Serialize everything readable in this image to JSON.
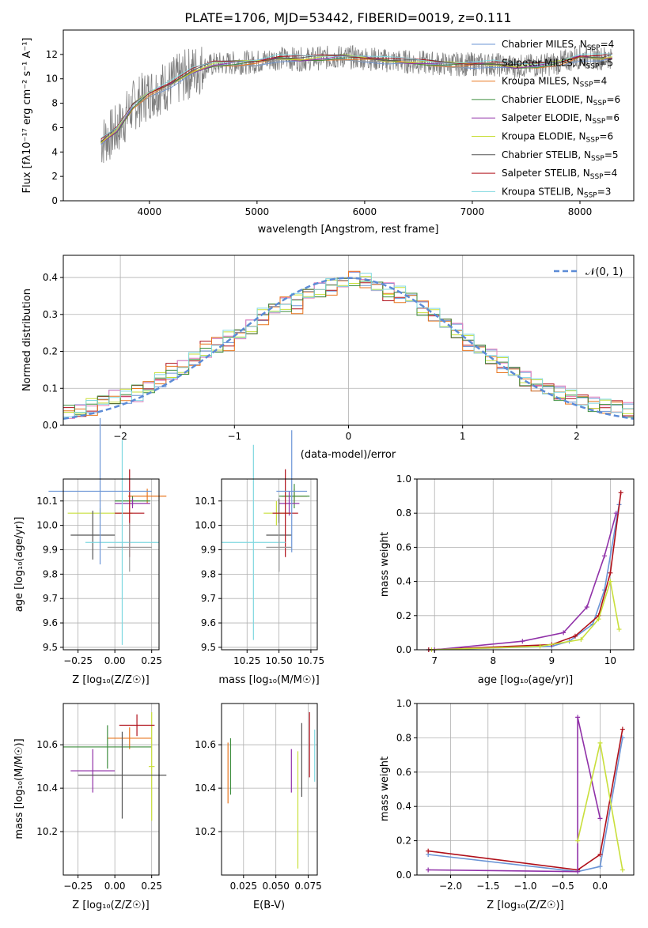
{
  "title": "PLATE=1706, MJD=53442, FIBERID=0019, z=0.111",
  "models": [
    {
      "name": "Chabrier MILES",
      "nssp": "4",
      "color": "#6b95d6"
    },
    {
      "name": "Salpeter MILES",
      "nssp": "5",
      "color": "#9b9b9b"
    },
    {
      "name": "Kroupa MILES",
      "nssp": "4",
      "color": "#e8761f"
    },
    {
      "name": "Chabrier ELODIE",
      "nssp": "6",
      "color": "#3e8e3e"
    },
    {
      "name": "Salpeter ELODIE",
      "nssp": "6",
      "color": "#9031a8"
    },
    {
      "name": "Kroupa ELODIE",
      "nssp": "6",
      "color": "#c9df3b"
    },
    {
      "name": "Chabrier STELIB",
      "nssp": "5",
      "color": "#555555"
    },
    {
      "name": "Salpeter STELIB",
      "nssp": "4",
      "color": "#b0101a"
    },
    {
      "name": "Kroupa STELIB",
      "nssp": "3",
      "color": "#7fd8e0"
    }
  ],
  "panels": {
    "spectrum": {
      "xlabel": "wavelength [Angstrom, rest frame]",
      "ylabel": "Flux [fλ10⁻¹⁷ erg cm⁻² s⁻¹ A⁻¹]",
      "xlim": [
        3200,
        8500
      ],
      "ylim": [
        0,
        14
      ],
      "xticks": [
        4000,
        5000,
        6000,
        7000,
        8000
      ],
      "yticks": [
        0,
        2,
        4,
        6,
        8,
        10,
        12
      ],
      "xticklabels": [
        "4000",
        "5000",
        "6000",
        "7000",
        "8000"
      ],
      "yticklabels": [
        "0",
        "2",
        "4",
        "6",
        "8",
        "10",
        "12"
      ]
    },
    "residuals": {
      "xlabel": "(data-model)/error",
      "ylabel": "Normed distribution",
      "legend": "𝒩(0, 1)",
      "xlim": [
        -2.5,
        2.5
      ],
      "ylim": [
        0,
        0.46
      ],
      "xticks": [
        -2,
        -1,
        0,
        1,
        2
      ],
      "yticks": [
        0,
        0.1,
        0.2,
        0.3,
        0.4
      ],
      "xticklabels": [
        "−2",
        "−1",
        "0",
        "1",
        "2"
      ],
      "yticklabels": [
        "0.0",
        "0.1",
        "0.2",
        "0.3",
        "0.4"
      ]
    },
    "age_z": {
      "xlabel": "Z [log₁₀(Z/Z☉)]",
      "ylabel": "age  [log₁₀(age/yr)]",
      "xlim": [
        -0.35,
        0.3
      ],
      "ylim": [
        9.49,
        10.19
      ],
      "xticks": [
        -0.25,
        0,
        0.25
      ],
      "yticks": [
        9.5,
        9.6,
        9.7,
        9.8,
        9.9,
        10.0,
        10.1
      ],
      "xticklabels": [
        "−0.25",
        "0.00",
        "0.25"
      ],
      "yticklabels": [
        "9.5",
        "9.6",
        "9.7",
        "9.8",
        "9.9",
        "10.0",
        "10.1"
      ]
    },
    "age_mass": {
      "xlabel": "mass [log₁₀(M/M☉)]",
      "xlim": [
        10.05,
        10.8
      ],
      "ylim": [
        9.49,
        10.19
      ],
      "xticks": [
        10.25,
        10.5,
        10.75
      ],
      "yticks": [
        9.5,
        9.6,
        9.7,
        9.8,
        9.9,
        10.0,
        10.1
      ],
      "xticklabels": [
        "10.25",
        "10.50",
        "10.75"
      ],
      "yticklabels": [
        "9.5",
        "9.6",
        "9.7",
        "9.8",
        "9.9",
        "10.0",
        "10.1"
      ]
    },
    "weight_age": {
      "xlabel": "age  [log₁₀(age/yr)]",
      "ylabel": "mass weight",
      "xlim": [
        6.7,
        10.4
      ],
      "ylim": [
        0,
        1
      ],
      "xticks": [
        7,
        8,
        9,
        10
      ],
      "yticks": [
        0,
        0.2,
        0.4,
        0.6,
        0.8,
        1.0
      ],
      "xticklabels": [
        "7",
        "8",
        "9",
        "10"
      ],
      "yticklabels": [
        "0.0",
        "0.2",
        "0.4",
        "0.6",
        "0.8",
        "1.0"
      ]
    },
    "mass_z": {
      "xlabel": "Z [log₁₀(Z/Z☉)]",
      "ylabel": "mass [log₁₀(M/M☉)]",
      "xlim": [
        -0.35,
        0.3
      ],
      "ylim": [
        10.0,
        10.79
      ],
      "xticks": [
        -0.25,
        0,
        0.25
      ],
      "yticks": [
        10.2,
        10.4,
        10.6
      ],
      "xticklabels": [
        "−0.25",
        "0.00",
        "0.25"
      ],
      "yticklabels": [
        "10.2",
        "10.4",
        "10.6"
      ]
    },
    "mass_ebv": {
      "xlabel": "E(B-V)",
      "xlim": [
        0.008,
        0.082
      ],
      "ylim": [
        10.0,
        10.79
      ],
      "xticks": [
        0.025,
        0.05,
        0.075
      ],
      "yticks": [
        10.2,
        10.4,
        10.6
      ],
      "xticklabels": [
        "0.025",
        "0.050",
        "0.075"
      ],
      "yticklabels": [
        "10.2",
        "10.4",
        "10.6"
      ]
    },
    "weight_z": {
      "xlabel": "Z [log₁₀(Z/Z☉)]",
      "ylabel": "mass weight",
      "xlim": [
        -2.45,
        0.45
      ],
      "ylim": [
        0,
        1
      ],
      "xticks": [
        -2,
        -1.5,
        -1,
        -0.5,
        0
      ],
      "yticks": [
        0,
        0.2,
        0.4,
        0.6,
        0.8,
        1.0
      ],
      "xticklabels": [
        "−2.0",
        "−1.5",
        "−1.0",
        "−0.5",
        "0.0"
      ],
      "yticklabels": [
        "0.0",
        "0.2",
        "0.4",
        "0.6",
        "0.8",
        "1.0"
      ]
    }
  },
  "chart_data": [
    {
      "type": "line",
      "panel": "spectrum",
      "description_source": "overlaid observed spectrum and 9 model fits",
      "x": [
        3550,
        3700,
        3850,
        4000,
        4200,
        4400,
        4600,
        4800,
        5000,
        5200,
        5400,
        5600,
        5800,
        6000,
        6200,
        6400,
        6600,
        6800,
        7000,
        7200,
        7400,
        7600,
        7800,
        8000,
        8200,
        8300
      ],
      "values": [
        4.8,
        5.8,
        7.8,
        8.8,
        9.6,
        10.6,
        11.2,
        11.3,
        11.4,
        11.7,
        11.6,
        11.7,
        11.8,
        11.7,
        11.5,
        11.4,
        11.3,
        11.2,
        11.2,
        11.2,
        11.0,
        11.1,
        11.3,
        11.8,
        11.7,
        11.8
      ]
    },
    {
      "type": "bar",
      "panel": "residuals",
      "x": [
        -2.45,
        -2.35,
        -2.25,
        -2.15,
        -2.05,
        -1.95,
        -1.85,
        -1.75,
        -1.65,
        -1.55,
        -1.45,
        -1.35,
        -1.25,
        -1.15,
        -1.05,
        -0.95,
        -0.85,
        -0.75,
        -0.65,
        -0.55,
        -0.45,
        -0.35,
        -0.25,
        -0.15,
        -0.05,
        0.05,
        0.15,
        0.25,
        0.35,
        0.45,
        0.55,
        0.65,
        0.75,
        0.85,
        0.95,
        1.05,
        1.15,
        1.25,
        1.35,
        1.45,
        1.55,
        1.65,
        1.75,
        1.85,
        1.95,
        2.05,
        2.15,
        2.25,
        2.35,
        2.45
      ],
      "series": [
        {
          "values": [
            0.035,
            0.04,
            0.05,
            0.07,
            0.08,
            0.075,
            0.08,
            0.1,
            0.12,
            0.14,
            0.16,
            0.18,
            0.2,
            0.22,
            0.24,
            0.25,
            0.27,
            0.3,
            0.32,
            0.33,
            0.34,
            0.36,
            0.37,
            0.38,
            0.39,
            0.4,
            0.395,
            0.38,
            0.37,
            0.36,
            0.35,
            0.32,
            0.3,
            0.28,
            0.26,
            0.23,
            0.21,
            0.19,
            0.17,
            0.15,
            0.13,
            0.11,
            0.1,
            0.09,
            0.08,
            0.07,
            0.06,
            0.055,
            0.05,
            0.045
          ]
        },
        {
          "values": [
            0.03,
            0.035,
            0.045,
            0.06,
            0.07,
            0.085,
            0.09,
            0.11,
            0.13,
            0.15,
            0.15,
            0.18,
            0.21,
            0.23,
            0.22,
            0.24,
            0.26,
            0.29,
            0.31,
            0.34,
            0.32,
            0.35,
            0.36,
            0.37,
            0.38,
            0.41,
            0.39,
            0.37,
            0.35,
            0.35,
            0.34,
            0.33,
            0.3,
            0.27,
            0.25,
            0.22,
            0.2,
            0.18,
            0.16,
            0.14,
            0.12,
            0.11,
            0.095,
            0.085,
            0.075,
            0.065,
            0.06,
            0.05,
            0.05,
            0.04
          ]
        },
        {
          "values": [
            0.04,
            0.045,
            0.055,
            0.065,
            0.075,
            0.08,
            0.095,
            0.105,
            0.125,
            0.135,
            0.155,
            0.175,
            0.195,
            0.215,
            0.235,
            0.245,
            0.265,
            0.295,
            0.315,
            0.325,
            0.335,
            0.355,
            0.365,
            0.375,
            0.385,
            0.395,
            0.385,
            0.375,
            0.365,
            0.355,
            0.345,
            0.315,
            0.295,
            0.275,
            0.255,
            0.225,
            0.205,
            0.185,
            0.165,
            0.145,
            0.125,
            0.105,
            0.095,
            0.085,
            0.075,
            0.065,
            0.055,
            0.05,
            0.045,
            0.04
          ]
        }
      ],
      "reference_curve": {
        "type": "gaussian",
        "mean": 0,
        "sigma": 1
      }
    },
    {
      "type": "scatter",
      "panel": "age_z",
      "series": [
        {
          "x": [
            0.22
          ],
          "y": [
            10.12
          ],
          "xerr": [
            0.13
          ],
          "yerr": [
            0.03
          ]
        },
        {
          "x": [
            0.12
          ],
          "y": [
            10.1
          ],
          "xerr": [
            0.12
          ],
          "yerr": [
            0.02
          ]
        },
        {
          "x": [
            0.12
          ],
          "y": [
            10.09
          ],
          "xerr": [
            0.12
          ],
          "yerr": [
            0.02
          ]
        },
        {
          "x": [
            -0.1
          ],
          "y": [
            10.05
          ],
          "xerr": [
            0.22
          ],
          "yerr": [
            0.02
          ]
        },
        {
          "x": [
            -0.15
          ],
          "y": [
            9.96
          ],
          "xerr": [
            0.15
          ],
          "yerr": [
            0.1
          ]
        },
        {
          "x": [
            0.1
          ],
          "y": [
            10.05
          ],
          "xerr": [
            0.1
          ],
          "yerr": [
            0.18
          ]
        },
        {
          "x": [
            0.05
          ],
          "y": [
            9.93
          ],
          "xerr": [
            0.25
          ],
          "yerr": [
            0.42
          ]
        },
        {
          "x": [
            -0.1
          ],
          "y": [
            10.14
          ],
          "xerr": [
            0.35
          ],
          "yerr": [
            0.3
          ]
        },
        {
          "x": [
            0.1
          ],
          "y": [
            9.91
          ],
          "xerr": [
            0.15
          ],
          "yerr": [
            0.1
          ]
        }
      ]
    },
    {
      "type": "scatter",
      "panel": "age_mass",
      "series": [
        {
          "x": [
            10.62
          ],
          "y": [
            10.12
          ],
          "xerr": [
            0.1
          ],
          "yerr": [
            0.03
          ]
        },
        {
          "x": [
            10.62
          ],
          "y": [
            10.12
          ],
          "xerr": [
            0.12
          ],
          "yerr": [
            0.05
          ]
        },
        {
          "x": [
            10.58
          ],
          "y": [
            10.09
          ],
          "xerr": [
            0.08
          ],
          "yerr": [
            0.05
          ]
        },
        {
          "x": [
            10.48
          ],
          "y": [
            10.05
          ],
          "xerr": [
            0.1
          ],
          "yerr": [
            0.05
          ]
        },
        {
          "x": [
            10.5
          ],
          "y": [
            9.96
          ],
          "xerr": [
            0.1
          ],
          "yerr": [
            0.15
          ]
        },
        {
          "x": [
            10.55
          ],
          "y": [
            10.05
          ],
          "xerr": [
            0.1
          ],
          "yerr": [
            0.18
          ]
        },
        {
          "x": [
            10.3
          ],
          "y": [
            9.93
          ],
          "xerr": [
            0.25
          ],
          "yerr": [
            0.4
          ]
        },
        {
          "x": [
            10.6
          ],
          "y": [
            10.14
          ],
          "xerr": [
            0.12
          ],
          "yerr": [
            0.25
          ]
        },
        {
          "x": [
            10.5
          ],
          "y": [
            9.91
          ],
          "xerr": [
            0.1
          ],
          "yerr": [
            0.1
          ]
        }
      ]
    },
    {
      "type": "line",
      "panel": "weight_age",
      "series": [
        {
          "x": [
            6.9,
            9.0,
            9.3,
            9.7,
            9.9,
            10.15
          ],
          "y": [
            0,
            0.02,
            0.05,
            0.15,
            0.35,
            0.85
          ]
        },
        {
          "x": [
            6.9,
            9.0,
            9.4,
            9.8,
            10.0,
            10.18
          ],
          "y": [
            0,
            0.03,
            0.08,
            0.2,
            0.45,
            0.92
          ]
        },
        {
          "x": [
            7.0,
            8.5,
            9.2,
            9.6,
            9.9,
            10.1
          ],
          "y": [
            0,
            0.05,
            0.1,
            0.25,
            0.55,
            0.8
          ]
        },
        {
          "x": [
            6.95,
            8.8,
            9.5,
            9.8,
            10.0,
            10.15
          ],
          "y": [
            0,
            0.02,
            0.06,
            0.18,
            0.4,
            0.12
          ]
        }
      ]
    },
    {
      "type": "scatter",
      "panel": "mass_z",
      "series": [
        {
          "x": [
            0.1
          ],
          "y": [
            10.63
          ],
          "xerr": [
            0.15
          ],
          "yerr": [
            0.05
          ]
        },
        {
          "x": [
            -0.05
          ],
          "y": [
            10.59
          ],
          "xerr": [
            0.3
          ],
          "yerr": [
            0.1
          ]
        },
        {
          "x": [
            -0.15
          ],
          "y": [
            10.48
          ],
          "xerr": [
            0.15
          ],
          "yerr": [
            0.1
          ]
        },
        {
          "x": [
            0.25
          ],
          "y": [
            10.5
          ],
          "xerr": [
            0.02
          ],
          "yerr": [
            0.25
          ]
        },
        {
          "x": [
            0.05
          ],
          "y": [
            10.46
          ],
          "xerr": [
            0.3
          ],
          "yerr": [
            0.2
          ]
        },
        {
          "x": [
            0.15
          ],
          "y": [
            10.69
          ],
          "xerr": [
            0.12
          ],
          "yerr": [
            0.05
          ]
        }
      ]
    },
    {
      "type": "scatter",
      "panel": "mass_ebv",
      "series": [
        {
          "x": [
            0.013
          ],
          "y": [
            10.47
          ],
          "yerr": [
            0.14
          ]
        },
        {
          "x": [
            0.015
          ],
          "y": [
            10.5
          ],
          "yerr": [
            0.13
          ]
        },
        {
          "x": [
            0.062
          ],
          "y": [
            10.48
          ],
          "yerr": [
            0.1
          ]
        },
        {
          "x": [
            0.067
          ],
          "y": [
            10.3
          ],
          "yerr": [
            0.27
          ]
        },
        {
          "x": [
            0.07
          ],
          "y": [
            10.53
          ],
          "yerr": [
            0.17
          ]
        },
        {
          "x": [
            0.076
          ],
          "y": [
            10.6
          ],
          "yerr": [
            0.15
          ]
        },
        {
          "x": [
            0.08
          ],
          "y": [
            10.55
          ],
          "yerr": [
            0.12
          ]
        }
      ]
    },
    {
      "type": "line",
      "panel": "weight_z",
      "series": [
        {
          "x": [
            -2.3,
            -0.3,
            0.0,
            0.3
          ],
          "y": [
            0.12,
            0.02,
            0.05,
            0.8
          ]
        },
        {
          "x": [
            -2.3,
            -0.3,
            0.0,
            0.3
          ],
          "y": [
            0.14,
            0.03,
            0.12,
            0.85
          ]
        },
        {
          "x": [
            -2.3,
            -0.3,
            -0.3,
            0.0
          ],
          "y": [
            0.03,
            0.02,
            0.92,
            0.33
          ]
        },
        {
          "x": [
            -0.3,
            0.0,
            0.3
          ],
          "y": [
            0.2,
            0.77,
            0.03
          ]
        }
      ]
    }
  ]
}
